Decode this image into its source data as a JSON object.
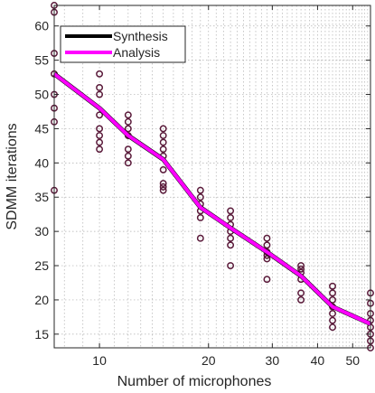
{
  "chart_data": {
    "type": "line",
    "title": "",
    "xlabel": "Number of microphones",
    "ylabel": "SDMM iterations",
    "xscale": "log",
    "xlim": [
      7.5,
      56
    ],
    "ylim": [
      13,
      63
    ],
    "x_ticks": [
      10,
      20,
      30,
      40,
      50
    ],
    "x_tick_labels": [
      "10",
      "20",
      "30",
      "40",
      "50"
    ],
    "y_ticks": [
      15,
      20,
      25,
      30,
      35,
      40,
      45,
      50,
      55,
      60
    ],
    "y_tick_labels": [
      "15",
      "20",
      "25",
      "30",
      "35",
      "40",
      "45",
      "50",
      "55",
      "60"
    ],
    "grid": true,
    "legend_position": "top-left",
    "series": [
      {
        "name": "Synthesis",
        "color": "#000000",
        "x": [
          7.5,
          10,
          12,
          15,
          19,
          23,
          29,
          36,
          44,
          56
        ],
        "y": [
          53,
          48,
          44,
          40.5,
          33.5,
          30.5,
          27,
          23.5,
          19,
          16.5
        ]
      },
      {
        "name": "Analysis",
        "color": "#ff00ff",
        "x": [
          7.5,
          10,
          12,
          15,
          19,
          23,
          29,
          36,
          44,
          56
        ],
        "y": [
          53,
          48,
          44,
          40.5,
          33.5,
          30.5,
          27,
          23.5,
          19,
          16.5
        ]
      }
    ],
    "scatter": {
      "color": "#5a1a3a",
      "points": [
        [
          7.5,
          63
        ],
        [
          7.5,
          62
        ],
        [
          7.5,
          56
        ],
        [
          7.5,
          53
        ],
        [
          7.5,
          50
        ],
        [
          7.5,
          48
        ],
        [
          7.5,
          46
        ],
        [
          7.5,
          36
        ],
        [
          10,
          53
        ],
        [
          10,
          51
        ],
        [
          10,
          50
        ],
        [
          10,
          47
        ],
        [
          10,
          45
        ],
        [
          10,
          44
        ],
        [
          10,
          43
        ],
        [
          10,
          42
        ],
        [
          12,
          47
        ],
        [
          12,
          46
        ],
        [
          12,
          45
        ],
        [
          12,
          44
        ],
        [
          12,
          42
        ],
        [
          12,
          41
        ],
        [
          12,
          40
        ],
        [
          15,
          45
        ],
        [
          15,
          44
        ],
        [
          15,
          43
        ],
        [
          15,
          42
        ],
        [
          15,
          41
        ],
        [
          15,
          39
        ],
        [
          15,
          37
        ],
        [
          15,
          36.5
        ],
        [
          15,
          36
        ],
        [
          19,
          36
        ],
        [
          19,
          35
        ],
        [
          19,
          34
        ],
        [
          19,
          33
        ],
        [
          19,
          32
        ],
        [
          19,
          29
        ],
        [
          23,
          33
        ],
        [
          23,
          32
        ],
        [
          23,
          31
        ],
        [
          23,
          30
        ],
        [
          23,
          29
        ],
        [
          23,
          28
        ],
        [
          23,
          25
        ],
        [
          29,
          29
        ],
        [
          29,
          28
        ],
        [
          29,
          27
        ],
        [
          29,
          26.5
        ],
        [
          29,
          26
        ],
        [
          29,
          23
        ],
        [
          36,
          25
        ],
        [
          36,
          24.5
        ],
        [
          36,
          24
        ],
        [
          36,
          23
        ],
        [
          36,
          21
        ],
        [
          36,
          20
        ],
        [
          44,
          22
        ],
        [
          44,
          21
        ],
        [
          44,
          20
        ],
        [
          44,
          19
        ],
        [
          44,
          18
        ],
        [
          44,
          17
        ],
        [
          44,
          16
        ],
        [
          56,
          21
        ],
        [
          56,
          19.5
        ],
        [
          56,
          18
        ],
        [
          56,
          17
        ],
        [
          56,
          16
        ],
        [
          56,
          15
        ],
        [
          56,
          14
        ],
        [
          56,
          13
        ]
      ]
    }
  }
}
